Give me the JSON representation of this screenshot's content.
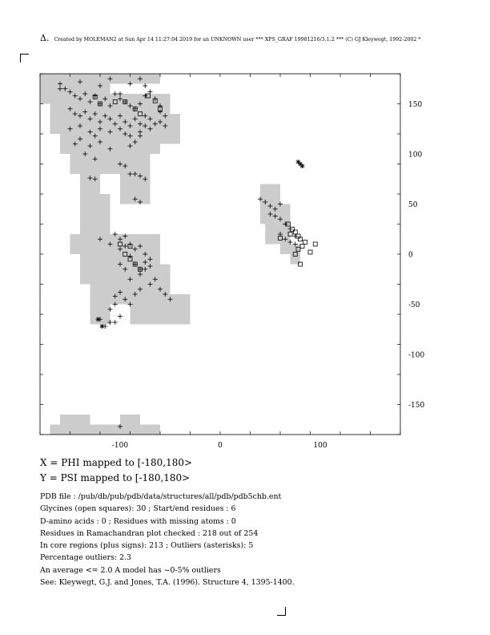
{
  "header": {
    "symbol": "Δ.",
    "text": "Created by MOLEMAN2 at Sun Apr 14 11:27:04 2019 for an UNKNOWN user *** XPS_GRAF 19981216/3.1.2 *** (C) GJ Kleywegt, 1992-2002 *"
  },
  "chart_data": {
    "type": "scatter",
    "xlim": [
      -180,
      180
    ],
    "ylim": [
      -180,
      180
    ],
    "x_ticks": [
      -100,
      0,
      100
    ],
    "y_ticks": [
      150,
      100,
      50,
      0,
      -50,
      -100,
      -150
    ],
    "core_regions": [
      [
        -180,
        150,
        -140,
        180
      ],
      [
        -140,
        160,
        -110,
        180
      ],
      [
        -110,
        170,
        -60,
        180
      ],
      [
        -170,
        120,
        -50,
        160
      ],
      [
        -160,
        100,
        -60,
        120
      ],
      [
        -150,
        80,
        -70,
        100
      ],
      [
        -60,
        110,
        -40,
        140
      ],
      [
        -140,
        60,
        -120,
        80
      ],
      [
        -100,
        50,
        -70,
        80
      ],
      [
        -140,
        20,
        -110,
        60
      ],
      [
        -150,
        0,
        -60,
        20
      ],
      [
        -140,
        -30,
        -60,
        0
      ],
      [
        -60,
        -10,
        -50,
        -30
      ],
      [
        -130,
        -50,
        -50,
        -30
      ],
      [
        -130,
        -70,
        -110,
        -50
      ],
      [
        -90,
        -70,
        -30,
        -50
      ],
      [
        -50,
        -60,
        -30,
        -40
      ],
      [
        40,
        30,
        60,
        70
      ],
      [
        60,
        30,
        70,
        50
      ],
      [
        45,
        10,
        70,
        30
      ],
      [
        60,
        0,
        80,
        10
      ],
      [
        70,
        -10,
        80,
        0
      ],
      [
        -170,
        -180,
        -60,
        -170
      ],
      [
        -160,
        -170,
        -130,
        -160
      ],
      [
        -100,
        -170,
        -80,
        -160
      ]
    ],
    "series": [
      {
        "marker": "plus",
        "points": [
          [
            -155,
            165
          ],
          [
            -150,
            162
          ],
          [
            -145,
            158
          ],
          [
            -140,
            155
          ],
          [
            -135,
            160
          ],
          [
            -130,
            152
          ],
          [
            -125,
            158
          ],
          [
            -120,
            150
          ],
          [
            -115,
            155
          ],
          [
            -110,
            148
          ],
          [
            -105,
            160
          ],
          [
            -100,
            155
          ],
          [
            -95,
            152
          ],
          [
            -90,
            148
          ],
          [
            -85,
            145
          ],
          [
            -80,
            150
          ],
          [
            -75,
            158
          ],
          [
            -70,
            162
          ],
          [
            -65,
            155
          ],
          [
            -60,
            148
          ],
          [
            -150,
            145
          ],
          [
            -145,
            140
          ],
          [
            -140,
            138
          ],
          [
            -135,
            142
          ],
          [
            -130,
            135
          ],
          [
            -125,
            140
          ],
          [
            -120,
            132
          ],
          [
            -115,
            138
          ],
          [
            -110,
            135
          ],
          [
            -105,
            130
          ],
          [
            -100,
            138
          ],
          [
            -95,
            132
          ],
          [
            -90,
            128
          ],
          [
            -85,
            135
          ],
          [
            -80,
            130
          ],
          [
            -75,
            138
          ],
          [
            -70,
            135
          ],
          [
            -65,
            130
          ],
          [
            -60,
            142
          ],
          [
            -55,
            138
          ],
          [
            -150,
            125
          ],
          [
            -140,
            128
          ],
          [
            -130,
            122
          ],
          [
            -125,
            118
          ],
          [
            -120,
            125
          ],
          [
            -110,
            122
          ],
          [
            -100,
            125
          ],
          [
            -95,
            120
          ],
          [
            -90,
            118
          ],
          [
            -80,
            122
          ],
          [
            -75,
            128
          ],
          [
            -70,
            125
          ],
          [
            -60,
            132
          ],
          [
            -55,
            128
          ],
          [
            -145,
            110
          ],
          [
            -140,
            115
          ],
          [
            -130,
            108
          ],
          [
            -120,
            112
          ],
          [
            -110,
            105
          ],
          [
            -90,
            108
          ],
          [
            -85,
            112
          ],
          [
            -80,
            118
          ],
          [
            -135,
            100
          ],
          [
            -125,
            95
          ],
          [
            -100,
            90
          ],
          [
            -95,
            88
          ],
          [
            -85,
            80
          ],
          [
            -80,
            78
          ],
          [
            -75,
            75
          ],
          [
            -130,
            76
          ],
          [
            -125,
            75
          ],
          [
            -90,
            80
          ],
          [
            -85,
            55
          ],
          [
            -80,
            52
          ],
          [
            -100,
            160
          ],
          [
            -90,
            170
          ],
          [
            -80,
            175
          ],
          [
            -75,
            168
          ],
          [
            -110,
            175
          ],
          [
            -120,
            168
          ],
          [
            -140,
            172
          ],
          [
            -160,
            170
          ],
          [
            -160,
            165
          ],
          [
            -105,
            20
          ],
          [
            -100,
            15
          ],
          [
            -95,
            18
          ],
          [
            -90,
            10
          ],
          [
            -85,
            5
          ],
          [
            -80,
            8
          ],
          [
            -75,
            0
          ],
          [
            -70,
            -5
          ],
          [
            -100,
            5
          ],
          [
            -95,
            8
          ],
          [
            -90,
            -2
          ],
          [
            -85,
            -10
          ],
          [
            -80,
            -15
          ],
          [
            -75,
            -8
          ],
          [
            -70,
            -12
          ],
          [
            -120,
            15
          ],
          [
            -110,
            10
          ],
          [
            -100,
            -10
          ],
          [
            -95,
            -15
          ],
          [
            -90,
            -25
          ],
          [
            -80,
            -20
          ],
          [
            -70,
            -30
          ],
          [
            -60,
            -35
          ],
          [
            -55,
            -40
          ],
          [
            -50,
            -45
          ],
          [
            -65,
            -25
          ],
          [
            -75,
            -15
          ],
          [
            -105,
            -42
          ],
          [
            -100,
            -38
          ],
          [
            -95,
            -45
          ],
          [
            -90,
            -50
          ],
          [
            -85,
            -40
          ],
          [
            -80,
            -35
          ],
          [
            -105,
            -50
          ],
          [
            -110,
            -55
          ],
          [
            -105,
            -68
          ],
          [
            -100,
            -62
          ],
          [
            -120,
            -65
          ],
          [
            -115,
            -72
          ],
          [
            -110,
            -68
          ],
          [
            -100,
            -172
          ],
          [
            40,
            55
          ],
          [
            45,
            52
          ],
          [
            50,
            48
          ],
          [
            55,
            45
          ],
          [
            60,
            50
          ],
          [
            50,
            40
          ],
          [
            55,
            38
          ],
          [
            60,
            35
          ],
          [
            65,
            30
          ],
          [
            70,
            25
          ],
          [
            60,
            20
          ],
          [
            65,
            15
          ],
          [
            70,
            12
          ],
          [
            75,
            10
          ],
          [
            75,
            18
          ]
        ]
      },
      {
        "marker": "square",
        "points": [
          [
            -125,
            157
          ],
          [
            -120,
            150
          ],
          [
            -105,
            152
          ],
          [
            -95,
            152
          ],
          [
            -85,
            145
          ],
          [
            -80,
            140
          ],
          [
            -72,
            158
          ],
          [
            -65,
            153
          ],
          [
            -60,
            145
          ],
          [
            -95,
            0
          ],
          [
            -90,
            -5
          ],
          [
            -85,
            -10
          ],
          [
            -80,
            -15
          ],
          [
            -90,
            8
          ],
          [
            -100,
            10
          ],
          [
            68,
            30
          ],
          [
            72,
            25
          ],
          [
            75,
            22
          ],
          [
            78,
            18
          ],
          [
            80,
            15
          ],
          [
            85,
            12
          ],
          [
            82,
            8
          ],
          [
            78,
            5
          ],
          [
            90,
            2
          ],
          [
            95,
            10
          ],
          [
            75,
            0
          ],
          [
            80,
            -10
          ],
          [
            70,
            20
          ],
          [
            60,
            16
          ]
        ]
      },
      {
        "marker": "asterisk",
        "points": [
          [
            78,
            92
          ],
          [
            80,
            90
          ],
          [
            82,
            88
          ],
          [
            -122,
            -65
          ],
          [
            -118,
            -72
          ]
        ]
      }
    ]
  },
  "axis_mapping": {
    "x": "X = PHI mapped to [-180,180>",
    "y": "Y = PSI mapped to [-180,180>"
  },
  "info_lines": [
    "PDB file : /pub/db/pub/pdb/data/structures/all/pdb/pdb5chb.ent",
    "Glycines (open squares): 30 ; Start/end residues : 6",
    "D-amino acids : 0 ; Residues with missing atoms : 0",
    "Residues in Ramachandran plot checked : 218 out of 254",
    "In core regions (plus signs): 213 ; Outliers (asterisks): 5",
    "Percentage outliers: 2.3",
    "An average <= 2.0 A model has ~0-5% outliers",
    "See: Kleywegt, G.J. and Jones, T.A. (1996). Structure 4, 1395-1400."
  ]
}
